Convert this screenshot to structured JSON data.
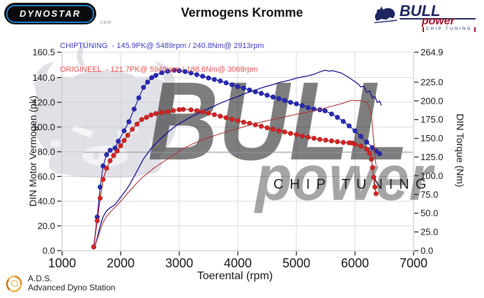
{
  "header": {
    "dynostar_text": "DYNOSTAR",
    "dynostar_sub": ".com",
    "title": "Vermogens Kromme",
    "legend": [
      {
        "name": "CHIPTUNING",
        "text": "CHIPTUNING  - 145.9PK@ 5489rpm / 240.8Nm@ 2913rpm",
        "color": "#3c3cc8"
      },
      {
        "name": "ORIGINEEL",
        "text": "ORIGINEEL  - 121.7PK@ 5949rpm / 188.6Nm@ 3068rpm",
        "color": "#ef5050"
      }
    ],
    "bull_logo": {
      "line1": "BULL",
      "line2": "power",
      "line3": "CHIP TUNING"
    }
  },
  "footer": {
    "ads_abbr": "A.D.S.",
    "ads_name": "Advanced Dyno Station"
  },
  "chart_data": {
    "type": "line",
    "title": "Vermogens Kromme",
    "xlabel": "Toerental (rpm)",
    "ylabel_left": "DIN Motor Vermogen (pk)",
    "ylabel_right": "DIN Torque (Nm)",
    "xlim": [
      1000,
      7000
    ],
    "ylim_left": [
      0,
      160.5
    ],
    "ylim_right": [
      0,
      264.9
    ],
    "x_ticks": [
      1000,
      2000,
      3000,
      4000,
      5000,
      6000,
      7000
    ],
    "y_ticks_left": [
      0,
      20,
      40,
      60,
      80,
      100,
      120,
      140,
      160.5
    ],
    "y_ticks_right": [
      0,
      25,
      50,
      75,
      100,
      125,
      150,
      175,
      200,
      225,
      264.9
    ],
    "grid": true,
    "peaks": {
      "chiptuning": {
        "power_pk": 145.9,
        "power_rpm": 5489,
        "torque_nm": 240.8,
        "torque_rpm": 2913
      },
      "origineel": {
        "power_pk": 121.7,
        "power_rpm": 5949,
        "torque_nm": 188.6,
        "torque_rpm": 3068
      }
    },
    "watermark": {
      "bull_text": "BULL",
      "power_text": "power",
      "chip_text": "CHIP TUNING",
      "gray": "#c3c3d1",
      "red": "#cc3a3a",
      "chip_gray": "#cccccc",
      "underline": "#9a9aaa"
    },
    "colors": {
      "grid": "#dadae2",
      "border": "#bfbfc8",
      "tick": "#222222"
    },
    "series": [
      {
        "id": "chiptuning-torque",
        "axis": "right",
        "unit": "Nm",
        "color": "#1c1c9c",
        "marker": true,
        "marker_fill": "#2a2ab4",
        "width": 1.2,
        "points": [
          [
            1540,
            5
          ],
          [
            1600,
            45
          ],
          [
            1650,
            85
          ],
          [
            1700,
            113
          ],
          [
            1760,
            128
          ],
          [
            1820,
            134
          ],
          [
            1905,
            137
          ],
          [
            1960,
            146
          ],
          [
            2060,
            160
          ],
          [
            2140,
            172
          ],
          [
            2230,
            189
          ],
          [
            2310,
            204
          ],
          [
            2390,
            218
          ],
          [
            2460,
            225
          ],
          [
            2530,
            231
          ],
          [
            2600,
            234
          ],
          [
            2700,
            237.5
          ],
          [
            2800,
            239.5
          ],
          [
            2913,
            240.8
          ],
          [
            3000,
            240.2
          ],
          [
            3100,
            239
          ],
          [
            3200,
            237.2
          ],
          [
            3300,
            235
          ],
          [
            3400,
            232.8
          ],
          [
            3500,
            230.5
          ],
          [
            3600,
            228.5
          ],
          [
            3700,
            226.5
          ],
          [
            3800,
            224
          ],
          [
            3900,
            221.5
          ],
          [
            4000,
            219
          ],
          [
            4100,
            217
          ],
          [
            4200,
            214.5
          ],
          [
            4300,
            212
          ],
          [
            4400,
            210
          ],
          [
            4500,
            207.5
          ],
          [
            4600,
            205
          ],
          [
            4700,
            203
          ],
          [
            4800,
            200.5
          ],
          [
            4900,
            198
          ],
          [
            5000,
            196
          ],
          [
            5100,
            193.5
          ],
          [
            5200,
            191
          ],
          [
            5300,
            189
          ],
          [
            5400,
            188
          ],
          [
            5489,
            186.7
          ],
          [
            5600,
            182.5
          ],
          [
            5700,
            178
          ],
          [
            5800,
            172.5
          ],
          [
            5900,
            166.5
          ],
          [
            6000,
            160
          ],
          [
            6100,
            152.5
          ],
          [
            6200,
            145
          ],
          [
            6300,
            137.5
          ],
          [
            6360,
            133
          ],
          [
            6420,
            129.5
          ]
        ]
      },
      {
        "id": "chiptuning-power",
        "axis": "left",
        "unit": "pk",
        "color": "#10108a",
        "marker": false,
        "width": 1.3,
        "points": [
          [
            1540,
            1.1
          ],
          [
            1600,
            10.3
          ],
          [
            1650,
            20
          ],
          [
            1700,
            27.4
          ],
          [
            1760,
            32.1
          ],
          [
            1820,
            34.7
          ],
          [
            1905,
            37.2
          ],
          [
            1960,
            40.7
          ],
          [
            2060,
            46.9
          ],
          [
            2140,
            52.4
          ],
          [
            2230,
            60
          ],
          [
            2310,
            67.1
          ],
          [
            2390,
            74.2
          ],
          [
            2460,
            78.8
          ],
          [
            2530,
            83.2
          ],
          [
            2600,
            86.6
          ],
          [
            2700,
            91.3
          ],
          [
            2800,
            95.5
          ],
          [
            2913,
            99.9
          ],
          [
            3000,
            102.6
          ],
          [
            3100,
            105.5
          ],
          [
            3200,
            108.1
          ],
          [
            3300,
            110.4
          ],
          [
            3400,
            112.7
          ],
          [
            3500,
            114.9
          ],
          [
            3600,
            117.1
          ],
          [
            3700,
            119.3
          ],
          [
            3800,
            121.2
          ],
          [
            3900,
            123
          ],
          [
            4000,
            124.7
          ],
          [
            4100,
            126.7
          ],
          [
            4200,
            128.3
          ],
          [
            4300,
            129.8
          ],
          [
            4400,
            131.6
          ],
          [
            4500,
            133
          ],
          [
            4600,
            134.3
          ],
          [
            4700,
            135.9
          ],
          [
            4800,
            137
          ],
          [
            4900,
            138.1
          ],
          [
            5000,
            139.5
          ],
          [
            5100,
            140.5
          ],
          [
            5200,
            141.4
          ],
          [
            5300,
            142.6
          ],
          [
            5400,
            144.6
          ],
          [
            5489,
            145.9
          ],
          [
            5560,
            145.2
          ],
          [
            5620,
            145.6
          ],
          [
            5700,
            144.5
          ],
          [
            5770,
            143.6
          ],
          [
            5830,
            141.9
          ],
          [
            5900,
            139.9
          ],
          [
            5960,
            138
          ],
          [
            6000,
            136.7
          ],
          [
            6060,
            134.6
          ],
          [
            6100,
            132.4
          ],
          [
            6150,
            133
          ],
          [
            6200,
            128
          ],
          [
            6250,
            129.2
          ],
          [
            6300,
            123.3
          ],
          [
            6340,
            124.8
          ],
          [
            6380,
            119.8
          ],
          [
            6420,
            121
          ],
          [
            6450,
            117.5
          ]
        ]
      },
      {
        "id": "origineel-torque",
        "axis": "right",
        "unit": "Nm",
        "color": "#b01818",
        "marker": true,
        "marker_fill": "#d62424",
        "width": 1.2,
        "points": [
          [
            1540,
            5
          ],
          [
            1600,
            40
          ],
          [
            1650,
            70
          ],
          [
            1700,
            95
          ],
          [
            1760,
            110
          ],
          [
            1820,
            120
          ],
          [
            1880,
            127
          ],
          [
            1940,
            133
          ],
          [
            2000,
            140
          ],
          [
            2060,
            147
          ],
          [
            2120,
            154
          ],
          [
            2200,
            162
          ],
          [
            2280,
            169
          ],
          [
            2360,
            175
          ],
          [
            2440,
            178
          ],
          [
            2520,
            181
          ],
          [
            2600,
            183
          ],
          [
            2700,
            184.5
          ],
          [
            2800,
            185.5
          ],
          [
            2900,
            187
          ],
          [
            3000,
            188.2
          ],
          [
            3068,
            188.6
          ],
          [
            3200,
            188
          ],
          [
            3300,
            186.8
          ],
          [
            3400,
            185.2
          ],
          [
            3500,
            183.5
          ],
          [
            3600,
            181.5
          ],
          [
            3700,
            179.5
          ],
          [
            3800,
            177.5
          ],
          [
            3900,
            175.5
          ],
          [
            4000,
            173.5
          ],
          [
            4100,
            171.5
          ],
          [
            4200,
            170
          ],
          [
            4300,
            168
          ],
          [
            4400,
            166
          ],
          [
            4500,
            164
          ],
          [
            4600,
            162
          ],
          [
            4700,
            160
          ],
          [
            4800,
            158.5
          ],
          [
            4900,
            156.5
          ],
          [
            5000,
            155
          ],
          [
            5100,
            153
          ],
          [
            5200,
            151.5
          ],
          [
            5300,
            150
          ],
          [
            5400,
            148.5
          ],
          [
            5500,
            147.5
          ],
          [
            5600,
            146.5
          ],
          [
            5700,
            145.5
          ],
          [
            5800,
            144.5
          ],
          [
            5900,
            144
          ],
          [
            5949,
            143.7
          ],
          [
            6000,
            142
          ],
          [
            6100,
            139.5
          ],
          [
            6200,
            135.5
          ],
          [
            6250,
            130
          ],
          [
            6280,
            122
          ],
          [
            6300,
            111
          ],
          [
            6320,
            98
          ],
          [
            6340,
            85
          ],
          [
            6360,
            76
          ]
        ]
      },
      {
        "id": "origineel-power",
        "axis": "left",
        "unit": "pk",
        "color": "#aa3434",
        "marker": false,
        "width": 1.1,
        "points": [
          [
            1540,
            1.1
          ],
          [
            1600,
            9.1
          ],
          [
            1650,
            16.4
          ],
          [
            1700,
            23
          ],
          [
            1760,
            27.6
          ],
          [
            1820,
            31.1
          ],
          [
            1880,
            34
          ],
          [
            1940,
            36.7
          ],
          [
            2000,
            39.9
          ],
          [
            2060,
            43.1
          ],
          [
            2120,
            46.5
          ],
          [
            2200,
            50.7
          ],
          [
            2280,
            54.9
          ],
          [
            2360,
            58.8
          ],
          [
            2440,
            61.8
          ],
          [
            2520,
            65
          ],
          [
            2600,
            67.8
          ],
          [
            2700,
            70.9
          ],
          [
            2800,
            74
          ],
          [
            2900,
            77.2
          ],
          [
            3000,
            80.4
          ],
          [
            3068,
            82.4
          ],
          [
            3200,
            85.7
          ],
          [
            3300,
            87.8
          ],
          [
            3400,
            89.7
          ],
          [
            3500,
            91.4
          ],
          [
            3600,
            93
          ],
          [
            3700,
            94.6
          ],
          [
            3800,
            96
          ],
          [
            3900,
            97.5
          ],
          [
            4000,
            98.8
          ],
          [
            4100,
            100.1
          ],
          [
            4200,
            101.7
          ],
          [
            4300,
            102.9
          ],
          [
            4400,
            104
          ],
          [
            4500,
            105.1
          ],
          [
            4600,
            106.1
          ],
          [
            4700,
            107.1
          ],
          [
            4800,
            108.3
          ],
          [
            4900,
            109.2
          ],
          [
            5000,
            110.3
          ],
          [
            5100,
            111.1
          ],
          [
            5200,
            112.2
          ],
          [
            5300,
            113.2
          ],
          [
            5400,
            114.2
          ],
          [
            5500,
            115.5
          ],
          [
            5600,
            116.8
          ],
          [
            5700,
            118.1
          ],
          [
            5800,
            119.3
          ],
          [
            5900,
            121
          ],
          [
            5949,
            121.7
          ],
          [
            6000,
            121.3
          ],
          [
            6050,
            121.5
          ],
          [
            6100,
            121.2
          ],
          [
            6150,
            120.6
          ],
          [
            6200,
            119.6
          ],
          [
            6250,
            115.7
          ],
          [
            6280,
            109.1
          ],
          [
            6300,
            99.6
          ],
          [
            6320,
            88.2
          ],
          [
            6340,
            76.7
          ],
          [
            6360,
            68.8
          ]
        ]
      }
    ]
  }
}
